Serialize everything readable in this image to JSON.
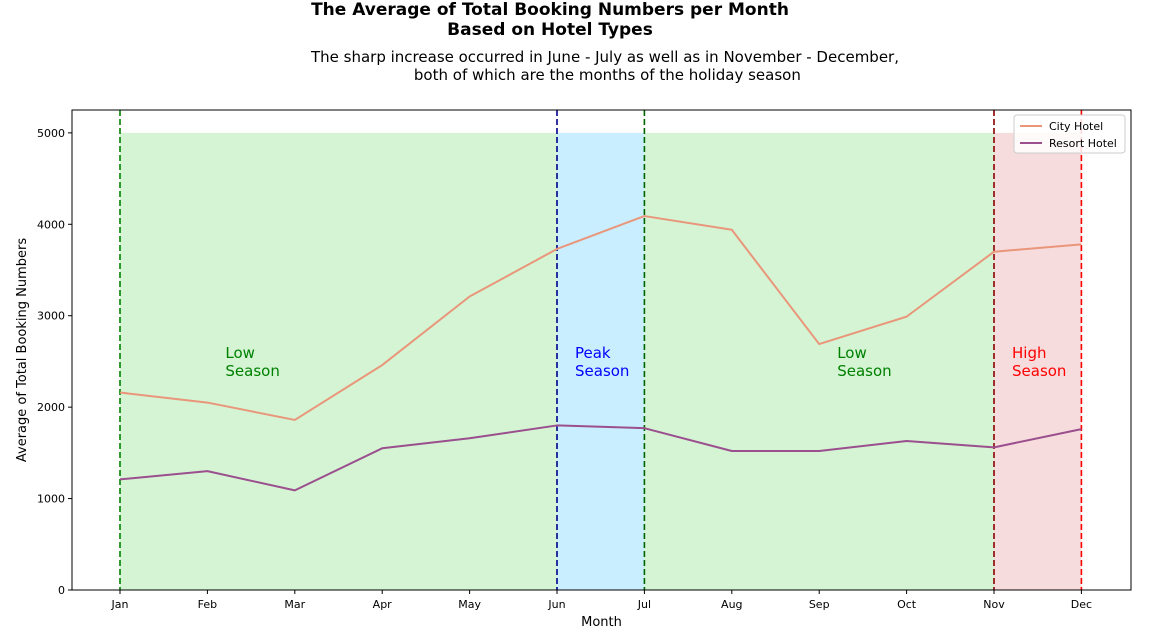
{
  "chart_data": {
    "type": "line",
    "title": [
      "The Average of Total Booking Numbers per Month",
      "Based on Hotel Types"
    ],
    "subtitle": [
      "The sharp increase occurred in June - July as well as in November - December,",
      " both of which are the months of the holiday season"
    ],
    "xlabel": "Month",
    "ylabel": "Average of Total Booking Numbers",
    "categories": [
      "Jan",
      "Feb",
      "Mar",
      "Apr",
      "May",
      "Jun",
      "Jul",
      "Aug",
      "Sep",
      "Oct",
      "Nov",
      "Dec"
    ],
    "ylim": [
      0,
      5250
    ],
    "yticks": [
      0,
      1000,
      2000,
      3000,
      4000,
      5000
    ],
    "grid": false,
    "legend_position": "top-right",
    "series": [
      {
        "name": "City Hotel",
        "color": "#e9967a",
        "values": [
          2160,
          2050,
          1860,
          2460,
          3210,
          3730,
          4090,
          3940,
          2690,
          2990,
          3700,
          3780
        ]
      },
      {
        "name": "Resort Hotel",
        "color": "#9b4f8e",
        "values": [
          1210,
          1300,
          1090,
          1550,
          1660,
          1800,
          1770,
          1520,
          1520,
          1630,
          1560,
          1760
        ]
      }
    ],
    "bands": [
      {
        "label": [
          "Low",
          "Season"
        ],
        "from": "Jan",
        "to": "Jun",
        "color": "#d4f4d4",
        "text_color": "#008000",
        "label_at": "Feb"
      },
      {
        "label": [
          "Peak",
          "Season"
        ],
        "from": "Jun",
        "to": "Jul",
        "color": "#c9eeff",
        "text_color": "#0000ff",
        "label_at": "Jun"
      },
      {
        "label": [
          "Low",
          "Season"
        ],
        "from": "Jul",
        "to": "Nov",
        "color": "#d4f4d4",
        "text_color": "#008000",
        "label_at": "Sep"
      },
      {
        "label": [
          "High",
          "Season"
        ],
        "from": "Nov",
        "to": "Dec",
        "color": "#f6dcdc",
        "text_color": "#ff0000",
        "label_at": "Nov"
      }
    ],
    "band_top": 5000,
    "vlines": [
      {
        "at": "Jan",
        "color": "#008000"
      },
      {
        "at": "Jun",
        "color": "#00008b"
      },
      {
        "at": "Jul",
        "color": "#006400"
      },
      {
        "at": "Nov",
        "color": "#8b0000"
      },
      {
        "at": "Dec",
        "color": "#ff0000"
      }
    ]
  }
}
